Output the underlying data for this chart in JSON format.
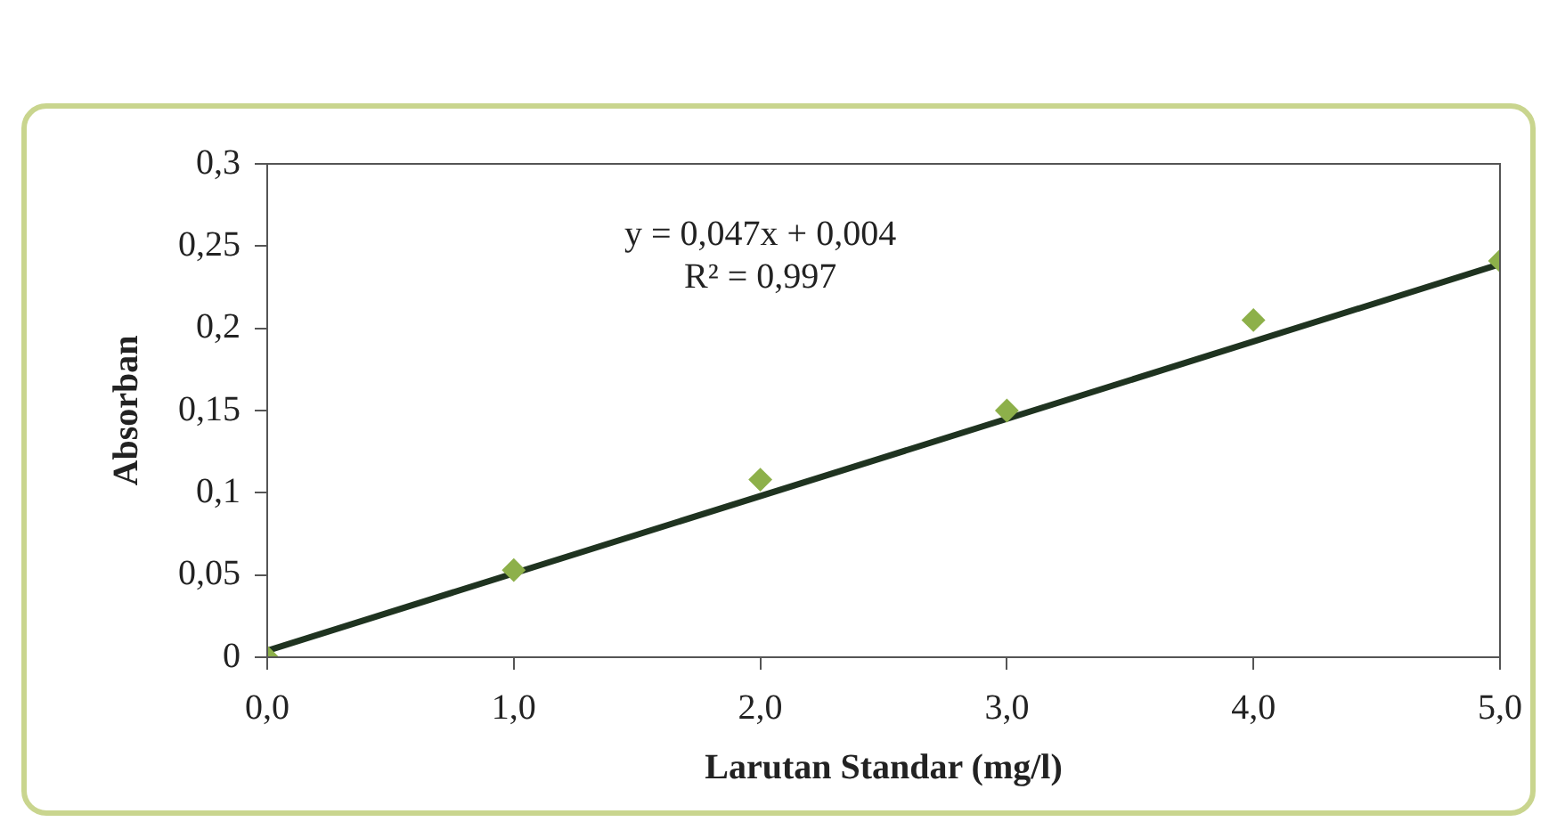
{
  "chart_data": {
    "type": "scatter",
    "xlabel": "Larutan Standar (mg/l)",
    "ylabel": "Absorban",
    "x": [
      0,
      1,
      2,
      3,
      4,
      5
    ],
    "series": [
      {
        "color": "#8db04a",
        "values": [
          0,
          0.053,
          0.108,
          0.15,
          0.205,
          0.241
        ]
      },
      {
        "type": "line",
        "marker": "none",
        "color": "#1f3320",
        "x": [
          0,
          5
        ],
        "values": [
          0.004,
          0.239
        ]
      }
    ],
    "xlim": [
      0,
      5
    ],
    "xticks": [
      {
        "value": 0,
        "label": "0,0"
      },
      {
        "value": 1,
        "label": "1,0"
      },
      {
        "value": 2,
        "label": "2,0"
      },
      {
        "value": 3,
        "label": "3,0"
      },
      {
        "value": 4,
        "label": "4,0"
      },
      {
        "value": 5,
        "label": "5,0"
      }
    ],
    "ylim": [
      0,
      0.3
    ],
    "yticks": [
      {
        "value": 0,
        "label": "0"
      },
      {
        "value": 0.05,
        "label": "0,05"
      },
      {
        "value": 0.1,
        "label": "0,1"
      },
      {
        "value": 0.15,
        "label": "0,15"
      },
      {
        "value": 0.2,
        "label": "0,2"
      },
      {
        "value": 0.25,
        "label": "0,25"
      },
      {
        "value": 0.3,
        "label": "0,3"
      }
    ],
    "annotations": [
      "y = 0,047x + 0,004",
      "R² = 0,997"
    ],
    "grid": false,
    "legend": false,
    "marker": "diamond",
    "line_style": "solid"
  }
}
